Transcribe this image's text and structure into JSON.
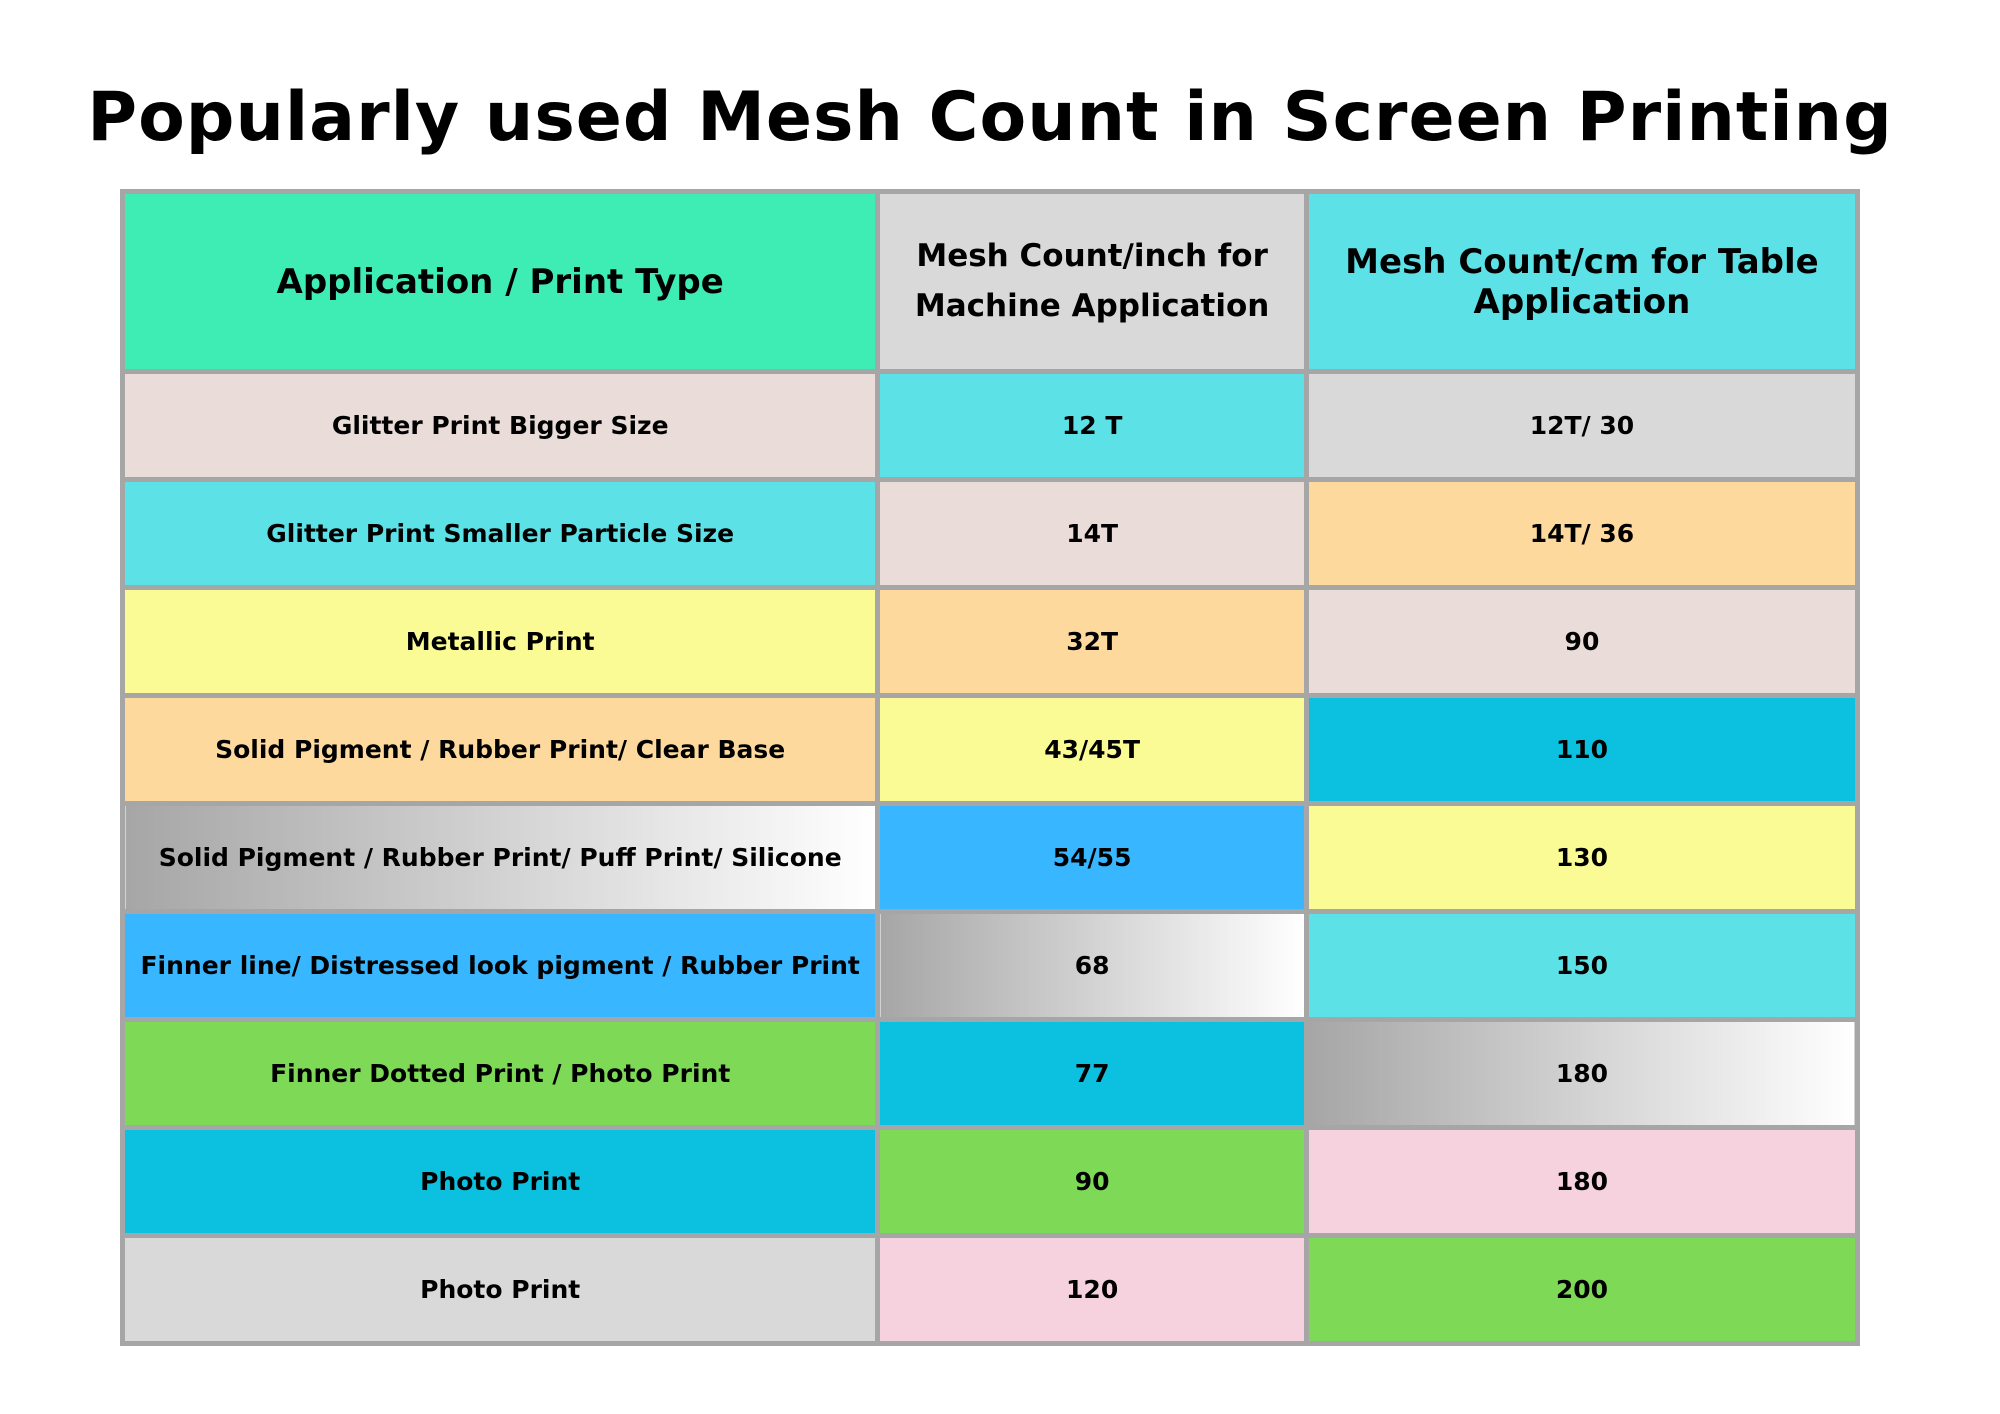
{
  "title": "Popularly used Mesh Count in Screen Printing",
  "table": {
    "headers": [
      {
        "label": "Application / Print Type",
        "color": "#3EEDB4"
      },
      {
        "label": "Mesh Count/inch for Machine Application",
        "color": "#D9D9D9"
      },
      {
        "label": "Mesh Count/cm for Table Application",
        "color": "#5CE1E6"
      }
    ],
    "rows": [
      {
        "cells": [
          {
            "text": "Glitter Print Bigger Size",
            "color": "#EADDD9"
          },
          {
            "text": "12 T",
            "color": "#5CE1E6"
          },
          {
            "text": "12T/ 30",
            "color": "#D9D9D9"
          }
        ]
      },
      {
        "cells": [
          {
            "text": "Glitter Print Smaller Particle Size",
            "color": "#5CE1E6"
          },
          {
            "text": "14T",
            "color": "#EADDD9"
          },
          {
            "text": "14T/ 36",
            "color": "#FDD99E"
          }
        ]
      },
      {
        "cells": [
          {
            "text": "Metallic Print",
            "color": "#FAFB94"
          },
          {
            "text": "32T",
            "color": "#FDD99E"
          },
          {
            "text": "90",
            "color": "#EADDD9"
          }
        ]
      },
      {
        "cells": [
          {
            "text": "Solid Pigment / Rubber Print/ Clear Base",
            "color": "#FDD99E"
          },
          {
            "text": "43/45T",
            "color": "#FAFB94"
          },
          {
            "text": "110",
            "color": "#0CC0DF"
          }
        ]
      },
      {
        "cells": [
          {
            "text": "Solid Pigment / Rubber Print/ Puff Print/ Silicone",
            "color": "gradient"
          },
          {
            "text": "54/55",
            "color": "#38B6FF"
          },
          {
            "text": "130",
            "color": "#FAFB94"
          }
        ]
      },
      {
        "cells": [
          {
            "text": "Finner line/ Distressed look pigment / Rubber Print",
            "color": "#38B6FF"
          },
          {
            "text": "68",
            "color": "gradient"
          },
          {
            "text": "150",
            "color": "#5CE1E6"
          }
        ]
      },
      {
        "cells": [
          {
            "text": "Finner Dotted Print / Photo Print",
            "color": "#7ED957"
          },
          {
            "text": "77",
            "color": "#0CC0DF"
          },
          {
            "text": "180",
            "color": "gradient"
          }
        ]
      },
      {
        "cells": [
          {
            "text": "Photo Print",
            "color": "#0CC0DF"
          },
          {
            "text": "90",
            "color": "#7ED957"
          },
          {
            "text": "180",
            "color": "#F5D2DD"
          }
        ]
      },
      {
        "cells": [
          {
            "text": "Photo Print",
            "color": "#D9D9D9"
          },
          {
            "text": "120",
            "color": "#F5D2DD"
          },
          {
            "text": "200",
            "color": "#7ED957"
          }
        ]
      }
    ]
  }
}
